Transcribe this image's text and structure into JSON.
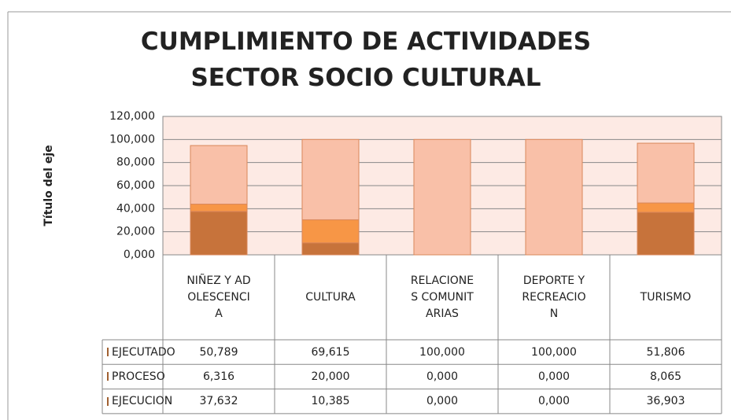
{
  "chart_data": {
    "type": "stacked_bar",
    "title": "CUMPLIMIENTO DE ACTIVIDADES SECTOR SOCIO CULTURAL",
    "y_axis_label": "Título del eje",
    "categories": [
      "NIÑEZ Y ADOLESCENCIA",
      "CULTURA",
      "RELACIONES COMUNITARIAS",
      "DEPORTE Y RECREACION",
      "TURISMO"
    ],
    "series": [
      {
        "name": "EJECUTADO",
        "color": "#f9c0a8",
        "values": [
          50.789,
          69.615,
          100,
          100,
          51.806
        ],
        "value_labels": [
          "50,789",
          "69,615",
          "100,000",
          "100,000",
          "51,806"
        ]
      },
      {
        "name": "PROCESO",
        "color": "#f79646",
        "values": [
          6.316,
          20,
          0,
          0,
          8.065
        ],
        "value_labels": [
          "6,316",
          "20,000",
          "0,000",
          "0,000",
          "8,065"
        ]
      },
      {
        "name": "EJECUCION",
        "color": "#c7733b",
        "values": [
          37.632,
          10.385,
          0,
          0,
          36.903
        ],
        "value_labels": [
          "37,632",
          "10,385",
          "0,000",
          "0,000",
          "36,903"
        ]
      }
    ],
    "ylim": [
      0,
      120
    ],
    "yticks": [
      {
        "value": 0,
        "label": "0,000"
      },
      {
        "value": 20,
        "label": "20,000"
      },
      {
        "value": 40,
        "label": "40,000"
      },
      {
        "value": 60,
        "label": "60,000"
      },
      {
        "value": 80,
        "label": "80,000"
      },
      {
        "value": 100,
        "label": "100,000"
      },
      {
        "value": 120,
        "label": "120,000"
      }
    ],
    "grid": true
  }
}
